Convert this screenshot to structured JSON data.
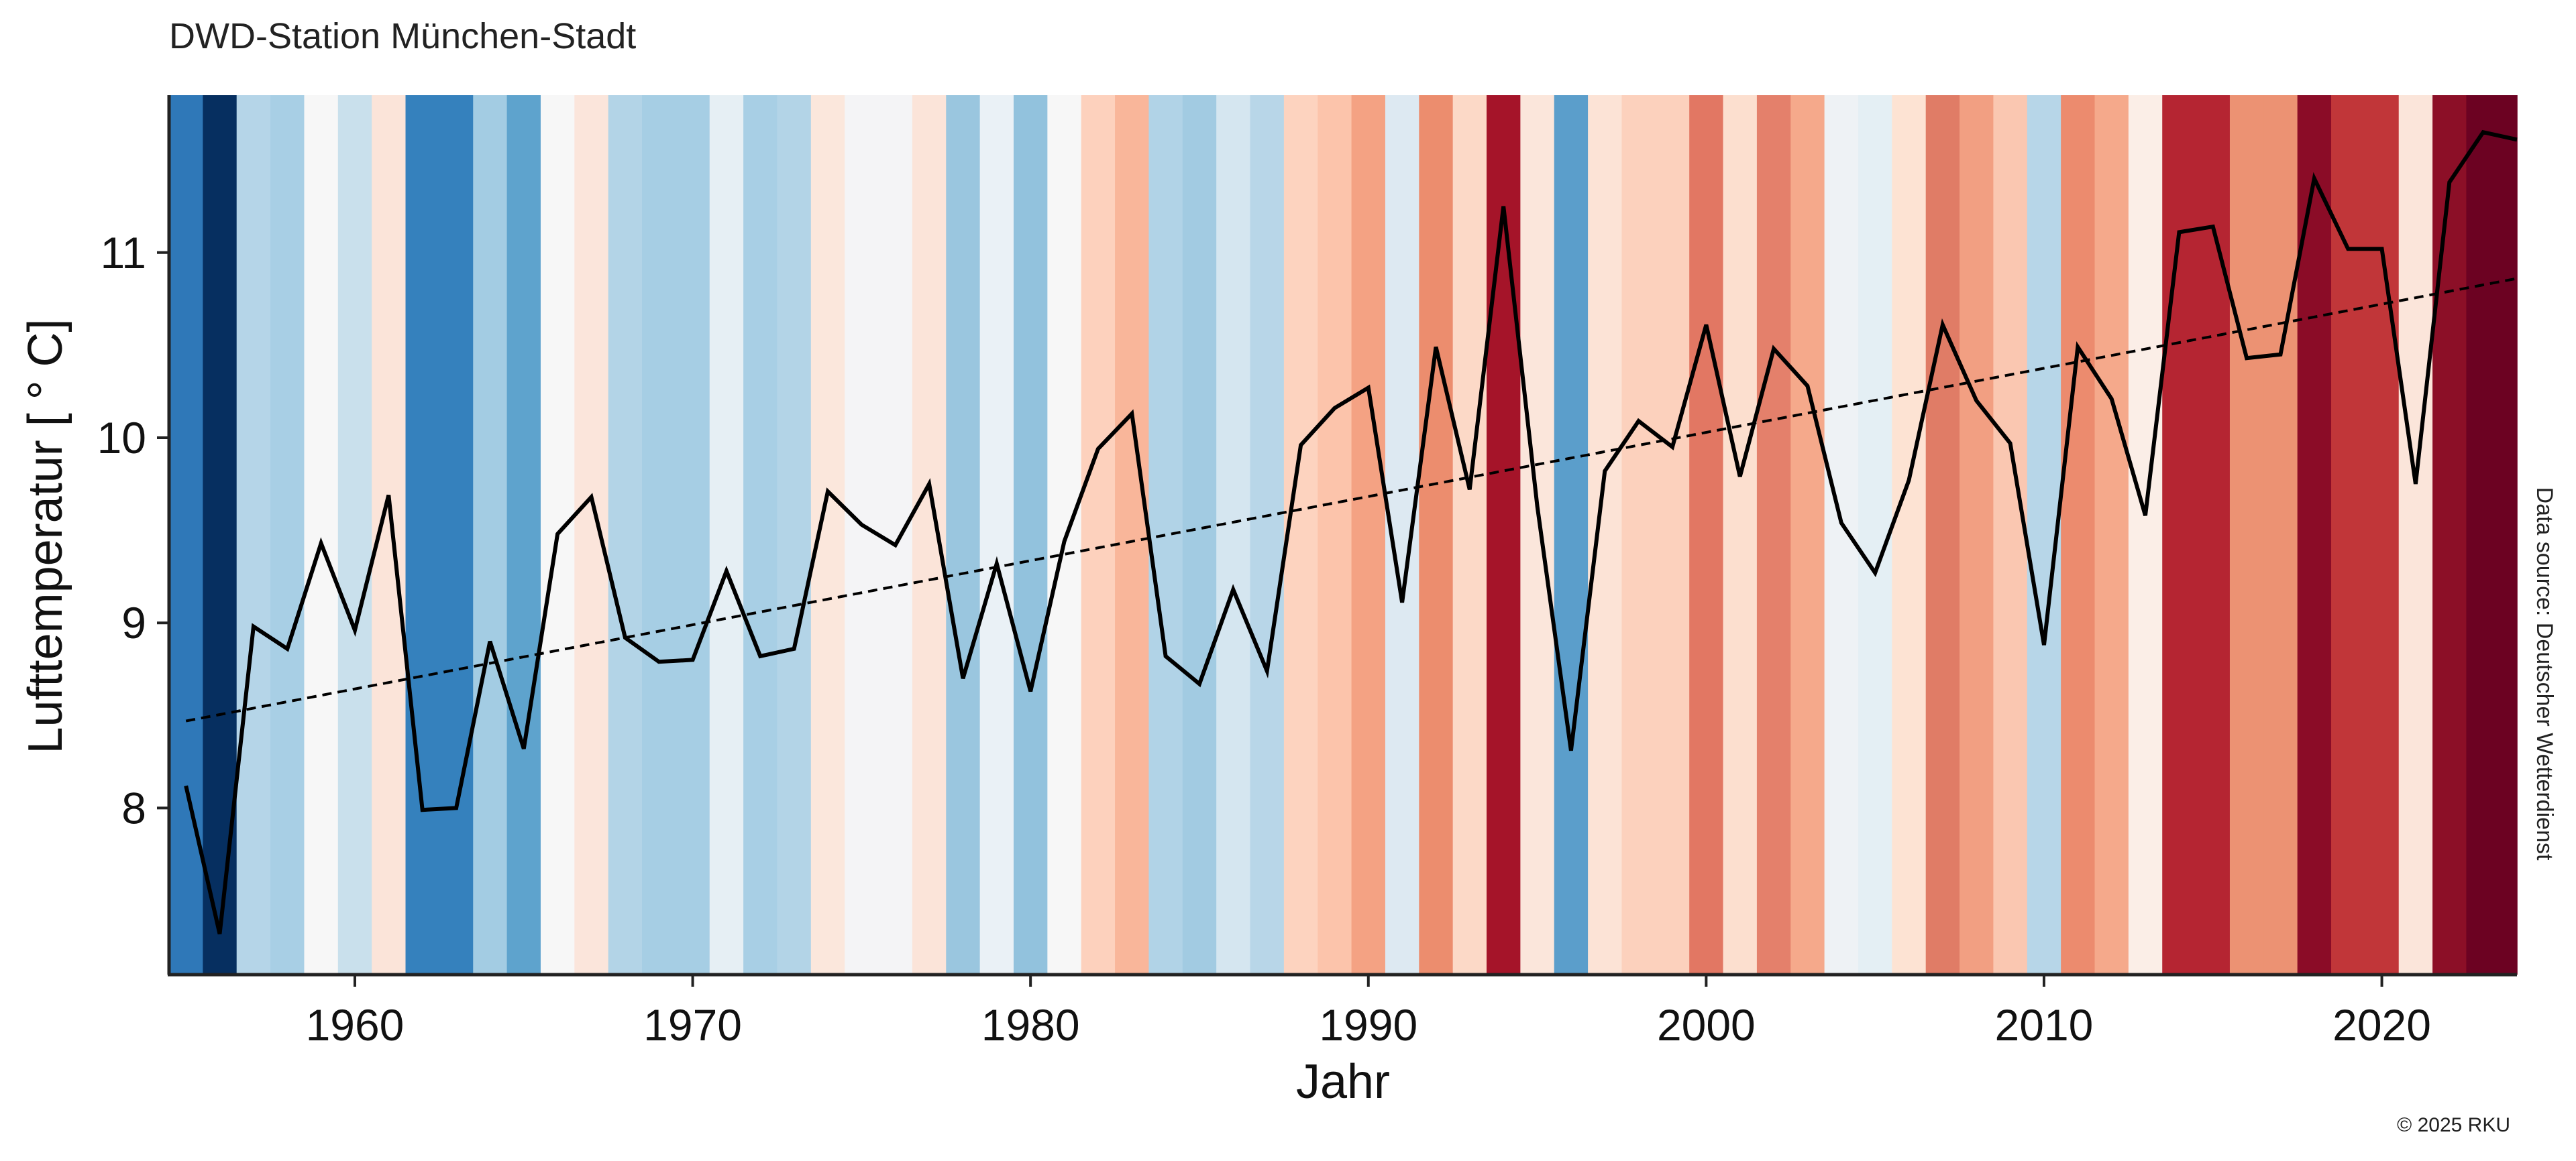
{
  "chart_data": {
    "type": "line",
    "title": "DWD-Station München-Stadt",
    "xlabel": "Jahr",
    "ylabel": "Lufttemperatur [ ° C]",
    "xlim": [
      1954.5,
      2024
    ],
    "ylim": [
      7.1,
      11.85
    ],
    "x_ticks": [
      1960,
      1970,
      1980,
      1990,
      2000,
      2010,
      2020
    ],
    "y_ticks": [
      8,
      9,
      10,
      11
    ],
    "grid": false,
    "legend": "none",
    "background": "warming stripes (one colored band per year, blue = cooler, red = warmer)",
    "years": [
      1955,
      1956,
      1957,
      1958,
      1959,
      1960,
      1961,
      1962,
      1963,
      1964,
      1965,
      1966,
      1967,
      1968,
      1969,
      1970,
      1971,
      1972,
      1973,
      1974,
      1975,
      1976,
      1977,
      1978,
      1979,
      1980,
      1981,
      1982,
      1983,
      1984,
      1985,
      1986,
      1987,
      1988,
      1989,
      1990,
      1991,
      1992,
      1993,
      1994,
      1995,
      1996,
      1997,
      1998,
      1999,
      2000,
      2001,
      2002,
      2003,
      2004,
      2005,
      2006,
      2007,
      2008,
      2009,
      2010,
      2011,
      2012,
      2013,
      2014,
      2015,
      2016,
      2017,
      2018,
      2019,
      2020,
      2021,
      2022,
      2023,
      2024
    ],
    "series": [
      {
        "values": [
          8.12,
          7.32,
          8.98,
          8.86,
          9.43,
          8.96,
          9.69,
          7.99,
          8.0,
          8.9,
          8.32,
          9.48,
          9.68,
          8.92,
          8.79,
          8.8,
          9.28,
          8.82,
          8.86,
          9.71,
          9.53,
          9.42,
          9.75,
          8.7,
          9.32,
          8.63,
          9.44,
          9.94,
          10.13,
          8.82,
          8.67,
          9.18,
          8.74,
          9.96,
          10.16,
          10.27,
          9.11,
          10.49,
          9.72,
          11.25,
          9.63,
          8.31,
          9.82,
          10.09,
          9.95,
          10.61,
          9.79,
          10.48,
          10.28,
          9.54,
          9.27,
          9.77,
          10.61,
          10.2,
          9.97,
          8.88,
          10.49,
          10.21,
          9.58,
          11.11,
          11.14,
          10.43,
          10.45,
          11.4,
          11.02,
          11.02,
          9.75,
          11.38,
          11.65,
          11.61
        ],
        "color": "#000000"
      },
      {
        "type": "trend",
        "style": "dashed",
        "x": [
          1955,
          2024
        ],
        "values": [
          8.47,
          10.86
        ],
        "color": "#000000"
      }
    ],
    "stripe_colors": [
      "#2f78b8",
      "#062f60",
      "#b5d5e8",
      "#a8cfe5",
      "#f7f7f7",
      "#c9e0ec",
      "#fbe4d9",
      "#3581bd",
      "#3581bd",
      "#a3cce3",
      "#5ea3cd",
      "#f7f7f7",
      "#fbe5db",
      "#b3d4e7",
      "#a6cee4",
      "#a6cee4",
      "#e6eff4",
      "#a8cfe5",
      "#b3d4e7",
      "#fbe7dc",
      "#f4f4f6",
      "#f4f4f6",
      "#fbe4d9",
      "#9ac6df",
      "#eaf1f6",
      "#92c2dd",
      "#f7f7f7",
      "#fdd1bd",
      "#f9b69a",
      "#b1d3e7",
      "#a2cbe2",
      "#d5e6f0",
      "#b8d6e8",
      "#fdd3bf",
      "#fcc4ab",
      "#f4a283",
      "#dde9f2",
      "#ec8d6e",
      "#fcd9c7",
      "#a51429",
      "#fbe6db",
      "#5b9ecb",
      "#fce3d6",
      "#fcd1bd",
      "#fcd1bd",
      "#e27763",
      "#fcdfcf",
      "#e4806b",
      "#f5a98b",
      "#eef2f5",
      "#e4eff4",
      "#fde3d3",
      "#e07c66",
      "#f29f82",
      "#fac7b1",
      "#b7d6e8",
      "#ec8b6e",
      "#f5a98b",
      "#fbeee7",
      "#b52532",
      "#b52532",
      "#ec9273",
      "#ec9273",
      "#8b0c27",
      "#c13639",
      "#c13639",
      "#fbe5da",
      "#8c0f27",
      "#6c0222",
      "#6c0222"
    ]
  },
  "source_note": "Data source: Deutscher Wetterdienst",
  "copyright": "© 2025 RKU"
}
